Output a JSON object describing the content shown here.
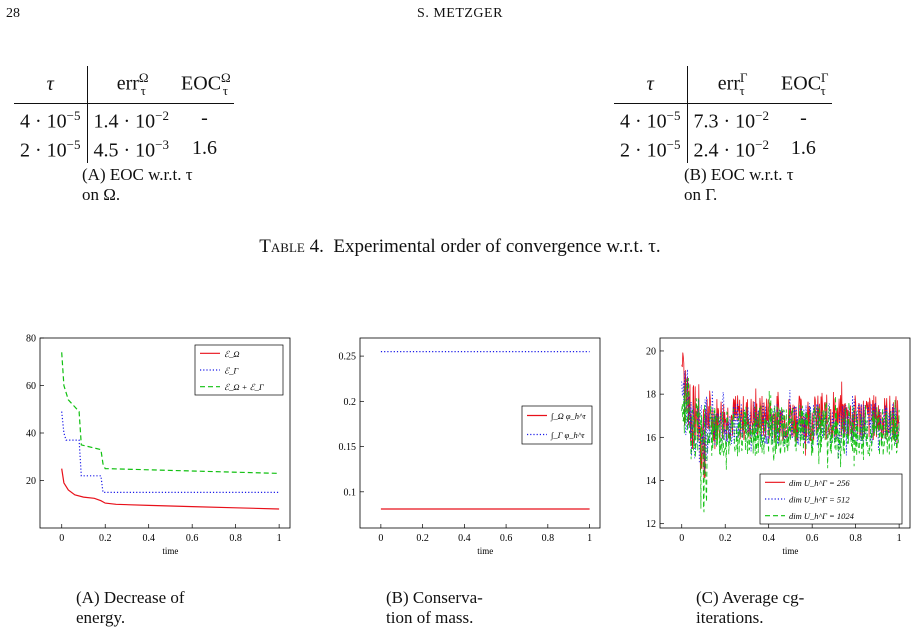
{
  "header": {
    "page_number": "28",
    "author": "S. METZGER"
  },
  "table_a": {
    "col_tau": "τ",
    "col_err": "err",
    "err_sup": "Ω",
    "err_sub": "τ",
    "col_eoc": "EOC",
    "eoc_sup": "Ω",
    "eoc_sub": "τ",
    "rows": [
      {
        "tau": "4 · 10",
        "tau_exp": "−5",
        "err": "1.4 · 10",
        "err_exp": "−2",
        "eoc": "-"
      },
      {
        "tau": "2 · 10",
        "tau_exp": "−5",
        "err": "4.5 · 10",
        "err_exp": "−3",
        "eoc": "1.6"
      }
    ],
    "caption_tag": "(A)",
    "caption_text": "EOC w.r.t. τ",
    "caption_line2": "on Ω."
  },
  "table_b": {
    "col_tau": "τ",
    "col_err": "err",
    "err_sup": "Γ",
    "err_sub": "τ",
    "col_eoc": "EOC",
    "eoc_sup": "Γ",
    "eoc_sub": "τ",
    "rows": [
      {
        "tau": "4 · 10",
        "tau_exp": "−5",
        "err": "7.3 · 10",
        "err_exp": "−2",
        "eoc": "-"
      },
      {
        "tau": "2 · 10",
        "tau_exp": "−5",
        "err": "2.4 · 10",
        "err_exp": "−2",
        "eoc": "1.6"
      }
    ],
    "caption_tag": "(B)",
    "caption_text": "EOC w.r.t. τ",
    "caption_line2": "on Γ."
  },
  "table_caption": {
    "label": "Table 4.",
    "text": "Experimental order of convergence w.r.t. τ."
  },
  "figure_captions": {
    "a": {
      "tag": "(A)",
      "line1": "Decrease of",
      "line2": "energy."
    },
    "b": {
      "tag": "(B)",
      "line1": "Conserva-",
      "line2": "tion of mass."
    },
    "c": {
      "tag": "(C)",
      "line1": "Average cg-",
      "line2": "iterations."
    }
  },
  "chart_data": [
    {
      "type": "line",
      "xlabel": "time",
      "xlim": [
        -0.1,
        1.05
      ],
      "ylim": [
        0,
        80
      ],
      "xticks": [
        "0",
        "0.2",
        "0.4",
        "0.6",
        "0.8",
        "1"
      ],
      "yticks": [
        "20",
        "40",
        "60",
        "80"
      ],
      "legend_position": "top-right",
      "series": [
        {
          "name": "ℰ_Ω",
          "color": "#e8101a",
          "dash": "solid",
          "x": [
            0,
            0.01,
            0.03,
            0.06,
            0.1,
            0.15,
            0.18,
            0.2,
            0.25,
            0.4,
            0.6,
            0.8,
            1
          ],
          "y": [
            25,
            19,
            16,
            14,
            13,
            12.5,
            11.5,
            10.5,
            10,
            9.5,
            9,
            8.5,
            8
          ]
        },
        {
          "name": "ℰ_Γ",
          "color": "#1a1ae8",
          "dash": "dotted",
          "x": [
            0,
            0.01,
            0.02,
            0.08,
            0.09,
            0.18,
            0.19,
            1
          ],
          "y": [
            49,
            40,
            37,
            37,
            22,
            22,
            15,
            15
          ]
        },
        {
          "name": "ℰ_Ω + ℰ_Γ",
          "color": "#10c010",
          "dash": "dashed",
          "x": [
            0,
            0.01,
            0.03,
            0.06,
            0.08,
            0.09,
            0.18,
            0.19,
            0.2,
            1
          ],
          "y": [
            74,
            60,
            54,
            51,
            49,
            35,
            33,
            27,
            25,
            23
          ]
        }
      ]
    },
    {
      "type": "line",
      "xlabel": "time",
      "xlim": [
        -0.1,
        1.05
      ],
      "ylim": [
        0.06,
        0.27
      ],
      "xticks": [
        "0",
        "0.2",
        "0.4",
        "0.6",
        "0.8",
        "1"
      ],
      "yticks": [
        "0.1",
        "0.15",
        "0.2",
        "0.25"
      ],
      "legend_position": "center-right",
      "series": [
        {
          "name": "∫_Ω φ_h^τ",
          "color": "#e8101a",
          "dash": "solid",
          "x": [
            0,
            1
          ],
          "y": [
            0.081,
            0.081
          ]
        },
        {
          "name": "∫_Γ φ_h^τ",
          "color": "#1a1ae8",
          "dash": "dotted",
          "x": [
            0,
            1
          ],
          "y": [
            0.255,
            0.255
          ]
        }
      ]
    },
    {
      "type": "line",
      "xlabel": "time",
      "xlim": [
        -0.1,
        1.05
      ],
      "ylim": [
        11.8,
        20.6
      ],
      "xticks": [
        "0",
        "0.2",
        "0.4",
        "0.6",
        "0.8",
        "1"
      ],
      "yticks": [
        "12",
        "14",
        "16",
        "18",
        "20"
      ],
      "legend_position": "bottom-right",
      "series": [
        {
          "name": "dim U_h^Γ = 256",
          "color": "#e8101a",
          "dash": "solid",
          "mean": 16.9,
          "amplitude": 1.1,
          "start_peak": 20.1,
          "dip": 13.7
        },
        {
          "name": "dim U_h^Γ = 512",
          "color": "#1a1ae8",
          "dash": "dotted",
          "mean": 16.6,
          "amplitude": 1.0,
          "start_peak": 18.6,
          "dip": 14.3
        },
        {
          "name": "dim U_h^Γ = 1024",
          "color": "#10c010",
          "dash": "dashed",
          "mean": 16.3,
          "amplitude": 1.2,
          "start_peak": 18.0,
          "dip": 12.5
        }
      ]
    }
  ]
}
